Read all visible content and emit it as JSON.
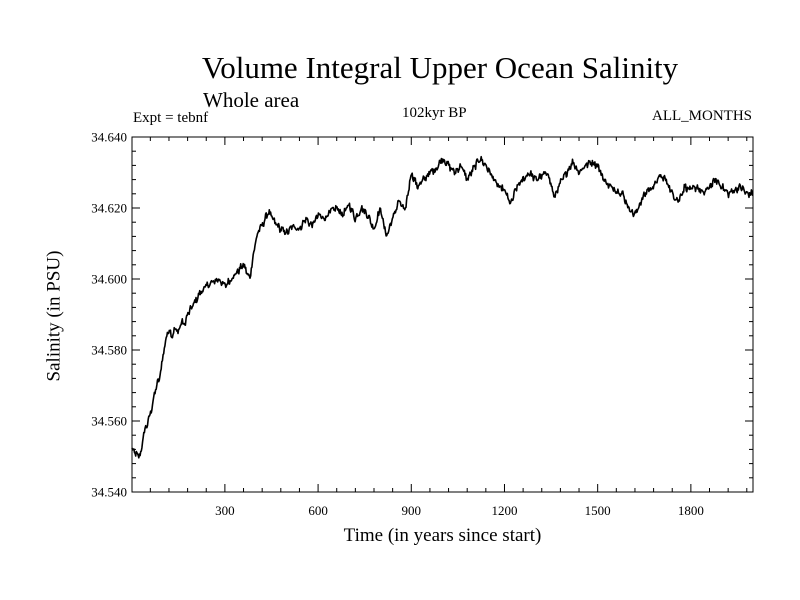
{
  "chart_data": {
    "type": "line",
    "title": "Volume Integral Upper Ocean Salinity",
    "subtitle": "Whole area",
    "experiment": "Expt = tebnf",
    "period": "102kyr BP",
    "months": "ALL_MONTHS",
    "xlabel": "Time (in years since start)",
    "ylabel": "Salinity (in PSU)",
    "xlim": [
      1,
      2000
    ],
    "ylim": [
      34.54,
      34.64
    ],
    "xticks": [
      300,
      600,
      900,
      1200,
      1500,
      1800
    ],
    "xtick_labels": [
      "300",
      "600",
      "900",
      "1200",
      "1500",
      "1800"
    ],
    "yticks": [
      34.54,
      34.56,
      34.58,
      34.6,
      34.62,
      34.64
    ],
    "ytick_labels": [
      "34.540",
      "34.560",
      "34.580",
      "34.600",
      "34.620",
      "34.640"
    ],
    "grid": false,
    "series": [
      {
        "name": "salinity",
        "x": [
          1,
          20,
          30,
          40,
          50,
          60,
          70,
          80,
          90,
          100,
          110,
          120,
          130,
          140,
          150,
          160,
          170,
          180,
          200,
          220,
          240,
          260,
          280,
          300,
          320,
          340,
          360,
          380,
          390,
          400,
          410,
          420,
          440,
          460,
          480,
          500,
          520,
          540,
          560,
          580,
          600,
          620,
          640,
          660,
          680,
          700,
          720,
          740,
          760,
          780,
          800,
          820,
          840,
          860,
          880,
          900,
          920,
          940,
          960,
          980,
          1000,
          1020,
          1040,
          1060,
          1080,
          1100,
          1120,
          1140,
          1160,
          1180,
          1200,
          1220,
          1240,
          1260,
          1280,
          1300,
          1320,
          1340,
          1360,
          1380,
          1400,
          1420,
          1440,
          1460,
          1480,
          1500,
          1520,
          1540,
          1560,
          1580,
          1600,
          1620,
          1640,
          1660,
          1680,
          1700,
          1720,
          1740,
          1760,
          1780,
          1800,
          1820,
          1840,
          1860,
          1880,
          1900,
          1920,
          1940,
          1960,
          1980,
          2000
        ],
        "y": [
          34.552,
          34.55,
          34.551,
          34.557,
          34.559,
          34.562,
          34.566,
          34.57,
          34.572,
          34.578,
          34.583,
          34.586,
          34.584,
          34.586,
          34.585,
          34.588,
          34.587,
          34.59,
          34.593,
          34.596,
          34.598,
          34.599,
          34.6,
          34.598,
          34.6,
          34.602,
          34.604,
          34.6,
          34.606,
          34.611,
          34.614,
          34.615,
          34.619,
          34.616,
          34.614,
          34.613,
          34.615,
          34.614,
          34.617,
          34.615,
          34.618,
          34.617,
          34.619,
          34.62,
          34.618,
          34.621,
          34.617,
          34.62,
          34.618,
          34.614,
          34.62,
          34.612,
          34.617,
          34.622,
          34.619,
          34.63,
          34.626,
          34.628,
          34.63,
          34.631,
          34.634,
          34.632,
          34.63,
          34.632,
          34.628,
          34.631,
          34.634,
          34.632,
          34.629,
          34.626,
          34.625,
          34.621,
          34.626,
          34.628,
          34.63,
          34.628,
          34.629,
          34.63,
          34.623,
          34.627,
          34.63,
          34.633,
          34.63,
          34.632,
          34.633,
          34.632,
          34.628,
          34.626,
          34.625,
          34.624,
          34.62,
          34.618,
          34.622,
          34.625,
          34.626,
          34.629,
          34.628,
          34.624,
          34.622,
          34.626,
          34.625,
          34.626,
          34.624,
          34.626,
          34.628,
          34.626,
          34.624,
          34.625,
          34.626,
          34.624,
          34.624
        ]
      }
    ]
  }
}
